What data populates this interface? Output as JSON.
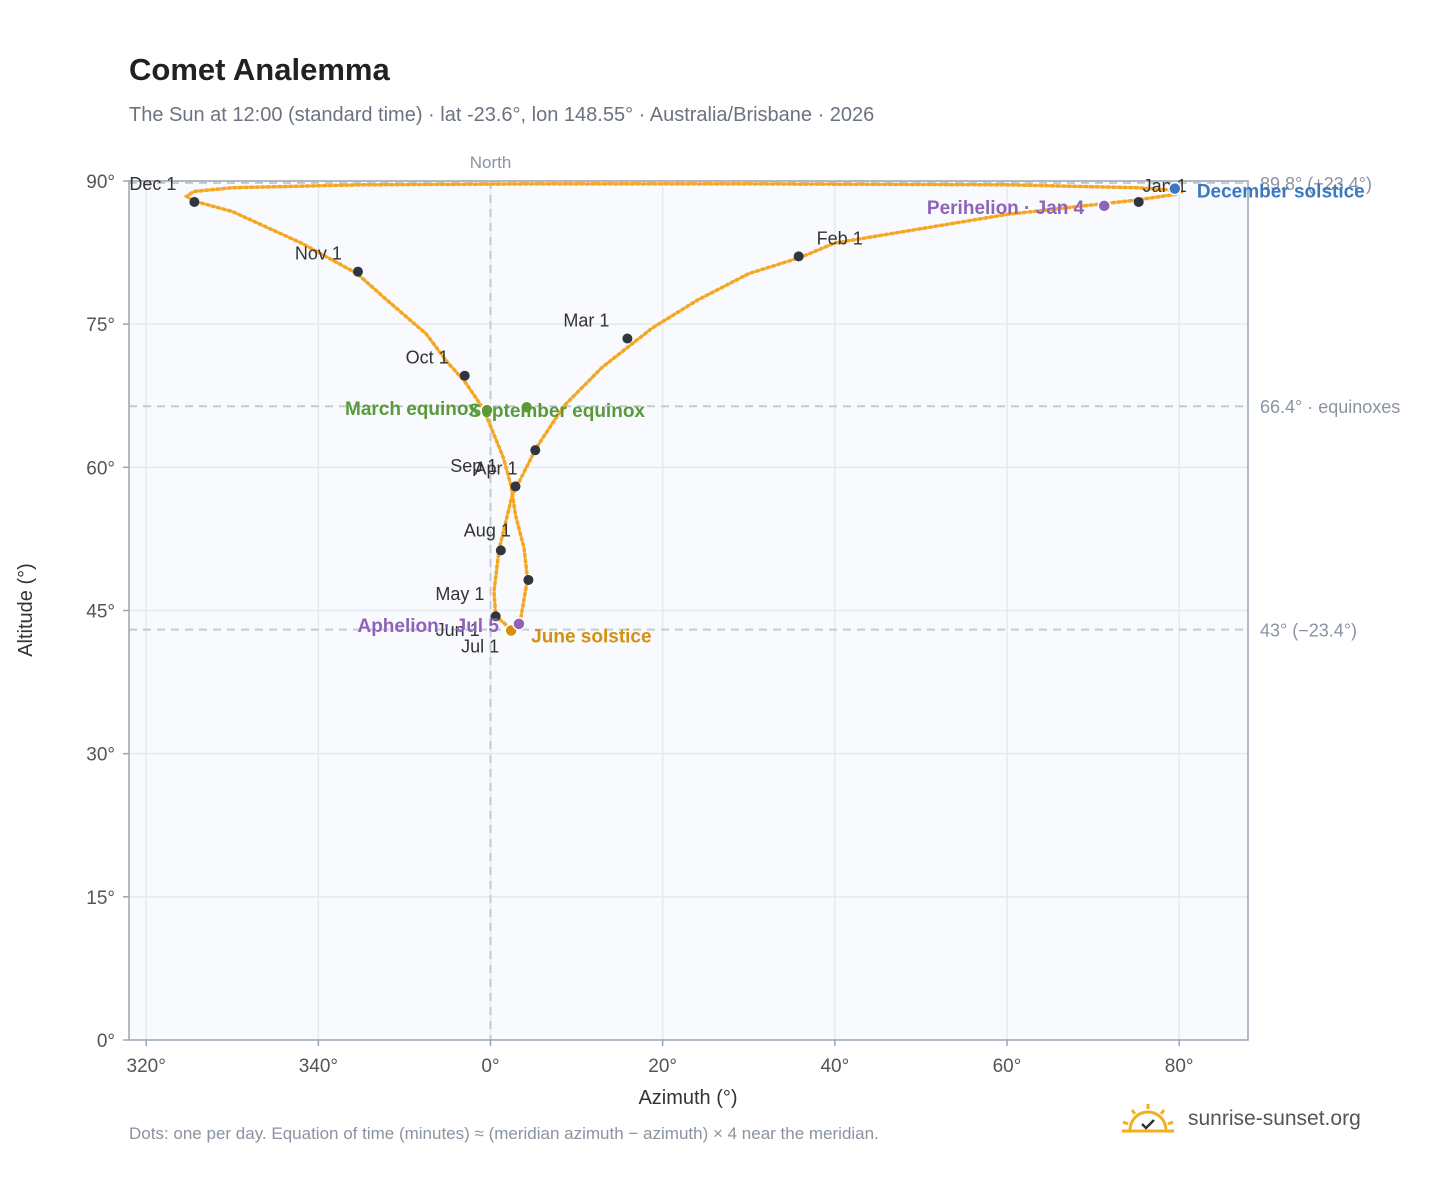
{
  "header": {
    "title": "Comet Analemma",
    "subtitle": "The Sun at 12:00 (standard time) · lat -23.6°, lon 148.55° · Australia/Brisbane · 2026"
  },
  "footer": {
    "note": "Dots: one per day. Equation of time (minutes) ≈ (meridian azimuth − azimuth) × 4 near the meridian.",
    "brand": "sunrise-sunset.org"
  },
  "colors": {
    "curve": "#f5a623",
    "month_marker": "#2f3640",
    "equinox": "#5a9a3a",
    "june_solstice": "#d4900e",
    "december_solstice": "#3b78c2",
    "apsis": "#8e63b8",
    "grid": "#e5e9f0",
    "reference_line": "#c4cad4",
    "plot_background": "#f8fafd"
  },
  "chart_data": {
    "type": "scatter",
    "title": "Comet Analemma",
    "xlabel": "Azimuth (°)",
    "ylabel": "Altitude (°)",
    "xlim": [
      318,
      448
    ],
    "ylim": [
      0,
      90
    ],
    "x_ticks": [
      {
        "value": 320,
        "label": "320°"
      },
      {
        "value": 340,
        "label": "340°"
      },
      {
        "value": 360,
        "label": "0°"
      },
      {
        "value": 380,
        "label": "20°"
      },
      {
        "value": 400,
        "label": "40°"
      },
      {
        "value": 420,
        "label": "60°"
      },
      {
        "value": 440,
        "label": "80°"
      }
    ],
    "y_ticks": [
      {
        "value": 0,
        "label": "0°"
      },
      {
        "value": 15,
        "label": "15°"
      },
      {
        "value": 30,
        "label": "30°"
      },
      {
        "value": 45,
        "label": "45°"
      },
      {
        "value": 60,
        "label": "60°"
      },
      {
        "value": 75,
        "label": "75°"
      },
      {
        "value": 90,
        "label": "90°"
      }
    ],
    "grid": true,
    "meridian": {
      "x": 360,
      "label": "North"
    },
    "reference_lines": [
      {
        "y": 89.8,
        "label": "89.8° (+23.4°)"
      },
      {
        "y": 66.4,
        "label": "66.4° · equinoxes"
      },
      {
        "y": 43,
        "label": "43° (−23.4°)"
      }
    ],
    "path": [
      {
        "x": 439.6,
        "y": 88.6
      },
      {
        "x": 438,
        "y": 88.4
      },
      {
        "x": 435,
        "y": 88.0
      },
      {
        "x": 431,
        "y": 87.6
      },
      {
        "x": 427,
        "y": 87.2
      },
      {
        "x": 420,
        "y": 86.5
      },
      {
        "x": 410,
        "y": 85.0
      },
      {
        "x": 400,
        "y": 83.5
      },
      {
        "x": 396,
        "y": 82.0
      },
      {
        "x": 390,
        "y": 80.3
      },
      {
        "x": 384,
        "y": 77.5
      },
      {
        "x": 378.8,
        "y": 74.6
      },
      {
        "x": 373,
        "y": 70.5
      },
      {
        "x": 368.5,
        "y": 66.4
      },
      {
        "x": 365.3,
        "y": 62.0
      },
      {
        "x": 362.5,
        "y": 57.0
      },
      {
        "x": 361.0,
        "y": 51.4
      },
      {
        "x": 360.4,
        "y": 47.0
      },
      {
        "x": 360.6,
        "y": 44.4
      },
      {
        "x": 362.6,
        "y": 42.9
      },
      {
        "x": 363.4,
        "y": 43.6
      },
      {
        "x": 364.3,
        "y": 48.3
      },
      {
        "x": 363.9,
        "y": 51.5
      },
      {
        "x": 362.9,
        "y": 55.0
      },
      {
        "x": 362.4,
        "y": 58.0
      },
      {
        "x": 361.5,
        "y": 61.0
      },
      {
        "x": 359.2,
        "y": 66.1
      },
      {
        "x": 357.0,
        "y": 69.0
      },
      {
        "x": 355.0,
        "y": 71.0
      },
      {
        "x": 352.5,
        "y": 74.0
      },
      {
        "x": 348.0,
        "y": 77.5
      },
      {
        "x": 344.5,
        "y": 80.3
      },
      {
        "x": 338.0,
        "y": 83.5
      },
      {
        "x": 330.0,
        "y": 86.8
      },
      {
        "x": 325.5,
        "y": 87.9
      },
      {
        "x": 324.7,
        "y": 88.4
      },
      {
        "x": 325.5,
        "y": 88.9
      },
      {
        "x": 330.0,
        "y": 89.3
      },
      {
        "x": 345.0,
        "y": 89.6
      },
      {
        "x": 365.0,
        "y": 89.7
      },
      {
        "x": 390.0,
        "y": 89.7
      },
      {
        "x": 420.0,
        "y": 89.6
      },
      {
        "x": 435.0,
        "y": 89.3
      },
      {
        "x": 440.0,
        "y": 89.0
      },
      {
        "x": 440.5,
        "y": 88.8
      }
    ],
    "month_markers": [
      {
        "label": "Jan 1",
        "x": 435.3,
        "y": 87.8
      },
      {
        "label": "Feb 1",
        "x": 395.8,
        "y": 82.1
      },
      {
        "label": "Mar 1",
        "x": 375.9,
        "y": 73.5
      },
      {
        "label": "Apr 1",
        "x": 362.9,
        "y": 58.0
      },
      {
        "label": "May 1",
        "x": 364.4,
        "y": 48.2
      },
      {
        "label": "Jun 1",
        "x": 360.6,
        "y": 44.4
      },
      {
        "label": "Jul 1",
        "x": 362.4,
        "y": 42.9
      },
      {
        "label": "Aug 1",
        "x": 361.2,
        "y": 51.3
      },
      {
        "label": "Sep 1",
        "x": 365.2,
        "y": 61.8
      },
      {
        "label": "Oct 1",
        "x": 357.0,
        "y": 69.6
      },
      {
        "label": "Nov 1",
        "x": 344.6,
        "y": 80.5
      },
      {
        "label": "Dec 1",
        "x": 325.6,
        "y": 87.8
      }
    ],
    "events": [
      {
        "label": "March equinox",
        "x": 359.6,
        "y": 66.0,
        "kind": "equinox"
      },
      {
        "label": "September equinox",
        "x": 364.2,
        "y": 66.3,
        "kind": "equinox"
      },
      {
        "label": "June solstice",
        "x": 362.4,
        "y": 42.9,
        "kind": "june_solstice"
      },
      {
        "label": "December solstice",
        "x": 439.5,
        "y": 89.2,
        "kind": "december_solstice"
      },
      {
        "label": "Perihelion · Jan 4",
        "x": 431.3,
        "y": 87.4,
        "kind": "apsis"
      },
      {
        "label": "Aphelion · Jul 5",
        "x": 363.3,
        "y": 43.6,
        "kind": "apsis"
      }
    ]
  }
}
